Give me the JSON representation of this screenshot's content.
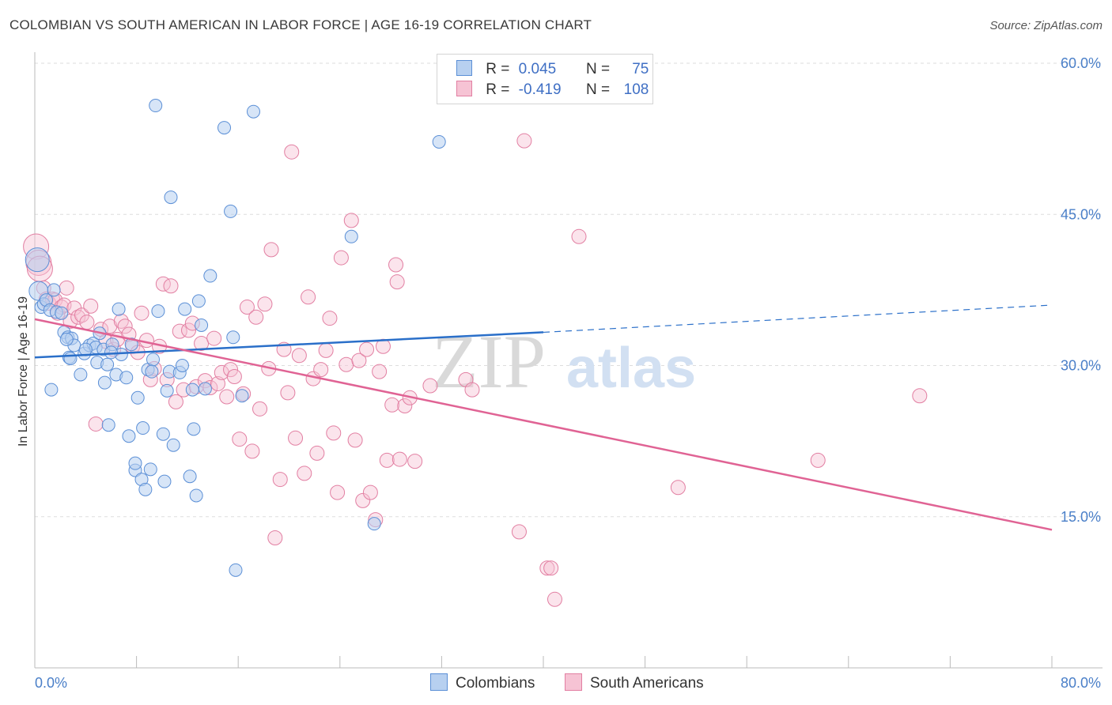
{
  "title": "COLOMBIAN VS SOUTH AMERICAN IN LABOR FORCE | AGE 16-19 CORRELATION CHART",
  "source": "Source: ZipAtlas.com",
  "watermark": {
    "zip": "ZIP",
    "atlas": "atlas"
  },
  "legend_stats": [
    {
      "r_label": "R =",
      "r_value": "0.045",
      "n_label": "N =",
      "n_value": "75"
    },
    {
      "r_label": "R =",
      "r_value": "-0.419",
      "n_label": "N =",
      "n_value": "108"
    }
  ],
  "bottom_legend": [
    "Colombians",
    "South Americans"
  ],
  "colors": {
    "colombians_fill": "#b7d0f0",
    "colombians_stroke": "#5b8fd6",
    "colombians_line": "#2a6fc9",
    "south_fill": "#f6c3d4",
    "south_stroke": "#e27fa2",
    "south_line": "#e06394",
    "tick_text": "#4a7fc8",
    "grid": "#dddddd"
  },
  "chart_data": {
    "type": "scatter",
    "title": "COLOMBIAN VS SOUTH AMERICAN IN LABOR FORCE | AGE 16-19 CORRELATION CHART",
    "xlabel": "",
    "ylabel": "In Labor Force | Age 16-19",
    "xlim": [
      0,
      80
    ],
    "ylim": [
      0,
      60
    ],
    "x_tick_labels": [
      "0.0%",
      "80.0%"
    ],
    "y_ticks": [
      15,
      30,
      45,
      60
    ],
    "y_tick_labels": [
      "15.0%",
      "30.0%",
      "45.0%",
      "60.0%"
    ],
    "grid": "horizontal dashed",
    "legend_position": "top-center",
    "series": [
      {
        "name": "Colombians",
        "trend": {
          "x": [
            0,
            40
          ],
          "y": [
            30.8,
            33.3
          ],
          "extended_to": [
            80,
            36.0
          ]
        },
        "points": [
          [
            0.2,
            40.5
          ],
          [
            0.3,
            37.4
          ],
          [
            0.5,
            35.8
          ],
          [
            0.7,
            36.1
          ],
          [
            0.9,
            36.5
          ],
          [
            1.2,
            35.5
          ],
          [
            1.5,
            37.5
          ],
          [
            1.7,
            35.3
          ],
          [
            1.3,
            27.6
          ],
          [
            2.1,
            35.2
          ],
          [
            2.3,
            33.3
          ],
          [
            2.6,
            32.8
          ],
          [
            2.9,
            32.7
          ],
          [
            3.1,
            32.0
          ],
          [
            2.7,
            30.8
          ],
          [
            2.8,
            30.7
          ],
          [
            3.6,
            29.1
          ],
          [
            3.9,
            31.2
          ],
          [
            4.3,
            32.0
          ],
          [
            4.6,
            32.2
          ],
          [
            4.8,
            31.8
          ],
          [
            4.9,
            30.3
          ],
          [
            5.1,
            33.2
          ],
          [
            5.4,
            31.6
          ],
          [
            5.5,
            28.3
          ],
          [
            5.7,
            30.1
          ],
          [
            5.8,
            24.1
          ],
          [
            6.1,
            32.1
          ],
          [
            6.4,
            29.1
          ],
          [
            6.6,
            35.6
          ],
          [
            6.8,
            31.1
          ],
          [
            7.2,
            28.8
          ],
          [
            7.4,
            23.0
          ],
          [
            7.6,
            32.1
          ],
          [
            7.9,
            19.6
          ],
          [
            7.9,
            20.3
          ],
          [
            8.1,
            26.8
          ],
          [
            8.4,
            18.7
          ],
          [
            8.5,
            23.8
          ],
          [
            8.7,
            17.7
          ],
          [
            9.1,
            19.7
          ],
          [
            8.9,
            29.6
          ],
          [
            9.3,
            30.6
          ],
          [
            9.5,
            55.8
          ],
          [
            9.7,
            35.4
          ],
          [
            10.1,
            23.2
          ],
          [
            10.2,
            18.5
          ],
          [
            10.4,
            27.5
          ],
          [
            10.6,
            29.4
          ],
          [
            10.7,
            46.7
          ],
          [
            10.9,
            22.1
          ],
          [
            11.4,
            29.3
          ],
          [
            11.6,
            30.0
          ],
          [
            11.8,
            35.6
          ],
          [
            12.2,
            19.0
          ],
          [
            12.4,
            27.6
          ],
          [
            12.5,
            23.7
          ],
          [
            12.7,
            17.1
          ],
          [
            12.9,
            36.4
          ],
          [
            13.1,
            34.0
          ],
          [
            13.8,
            38.9
          ],
          [
            14.9,
            53.6
          ],
          [
            15.4,
            45.3
          ],
          [
            15.6,
            32.8
          ],
          [
            15.8,
            9.7
          ],
          [
            16.3,
            27.0
          ],
          [
            17.2,
            55.2
          ],
          [
            24.9,
            42.8
          ],
          [
            26.7,
            14.3
          ],
          [
            31.8,
            52.2
          ],
          [
            13.4,
            27.7
          ],
          [
            6.0,
            31.3
          ],
          [
            4.0,
            31.6
          ],
          [
            9.2,
            29.4
          ],
          [
            2.5,
            32.6
          ]
        ]
      },
      {
        "name": "South Americans",
        "trend": {
          "x": [
            0,
            80
          ],
          "y": [
            34.6,
            13.7
          ]
        },
        "points": [
          [
            0.1,
            41.8
          ],
          [
            0.3,
            40.2
          ],
          [
            0.4,
            39.6
          ],
          [
            0.7,
            37.7
          ],
          [
            0.9,
            36.6
          ],
          [
            1.1,
            36.2
          ],
          [
            1.4,
            36.6
          ],
          [
            1.6,
            36.5
          ],
          [
            1.8,
            35.2
          ],
          [
            2.1,
            35.8
          ],
          [
            2.3,
            36.0
          ],
          [
            2.5,
            37.7
          ],
          [
            2.8,
            34.4
          ],
          [
            3.1,
            35.7
          ],
          [
            3.4,
            34.8
          ],
          [
            3.7,
            35.0
          ],
          [
            4.1,
            34.3
          ],
          [
            4.4,
            35.9
          ],
          [
            4.8,
            24.2
          ],
          [
            5.2,
            33.6
          ],
          [
            5.6,
            32.4
          ],
          [
            5.9,
            33.9
          ],
          [
            6.2,
            31.6
          ],
          [
            6.5,
            32.6
          ],
          [
            6.8,
            34.4
          ],
          [
            7.1,
            33.9
          ],
          [
            7.4,
            33.1
          ],
          [
            7.7,
            31.9
          ],
          [
            8.1,
            31.3
          ],
          [
            8.4,
            35.2
          ],
          [
            8.8,
            32.5
          ],
          [
            9.1,
            28.6
          ],
          [
            9.4,
            29.7
          ],
          [
            9.8,
            31.9
          ],
          [
            10.1,
            38.1
          ],
          [
            10.4,
            28.6
          ],
          [
            10.7,
            37.9
          ],
          [
            11.1,
            26.4
          ],
          [
            11.4,
            33.4
          ],
          [
            11.7,
            27.6
          ],
          [
            12.1,
            33.5
          ],
          [
            12.4,
            34.2
          ],
          [
            12.7,
            27.9
          ],
          [
            13.1,
            32.2
          ],
          [
            13.4,
            28.5
          ],
          [
            13.8,
            27.8
          ],
          [
            14.1,
            32.7
          ],
          [
            14.4,
            28.2
          ],
          [
            14.7,
            29.3
          ],
          [
            15.1,
            26.9
          ],
          [
            15.4,
            29.6
          ],
          [
            15.7,
            28.9
          ],
          [
            16.1,
            22.7
          ],
          [
            16.4,
            27.2
          ],
          [
            16.7,
            35.8
          ],
          [
            17.1,
            21.5
          ],
          [
            17.4,
            34.8
          ],
          [
            17.7,
            25.7
          ],
          [
            18.1,
            36.1
          ],
          [
            18.4,
            29.7
          ],
          [
            18.6,
            41.5
          ],
          [
            18.9,
            12.9
          ],
          [
            19.3,
            18.7
          ],
          [
            19.6,
            31.6
          ],
          [
            19.9,
            27.3
          ],
          [
            20.2,
            51.2
          ],
          [
            20.5,
            22.8
          ],
          [
            20.8,
            31.0
          ],
          [
            21.2,
            19.3
          ],
          [
            21.5,
            36.8
          ],
          [
            21.9,
            28.7
          ],
          [
            22.2,
            21.3
          ],
          [
            22.5,
            29.6
          ],
          [
            22.9,
            31.5
          ],
          [
            23.2,
            34.7
          ],
          [
            23.5,
            23.3
          ],
          [
            23.8,
            17.4
          ],
          [
            24.1,
            40.7
          ],
          [
            24.5,
            30.1
          ],
          [
            24.9,
            44.4
          ],
          [
            25.2,
            22.6
          ],
          [
            25.5,
            30.5
          ],
          [
            25.8,
            16.6
          ],
          [
            26.1,
            31.6
          ],
          [
            26.4,
            17.4
          ],
          [
            26.8,
            14.7
          ],
          [
            27.1,
            29.4
          ],
          [
            27.4,
            31.9
          ],
          [
            27.7,
            20.6
          ],
          [
            28.1,
            26.1
          ],
          [
            28.4,
            40.0
          ],
          [
            28.5,
            38.3
          ],
          [
            28.7,
            20.7
          ],
          [
            29.1,
            26.0
          ],
          [
            29.5,
            26.8
          ],
          [
            29.9,
            20.5
          ],
          [
            33.9,
            28.6
          ],
          [
            34.4,
            27.6
          ],
          [
            38.1,
            13.5
          ],
          [
            38.5,
            52.3
          ],
          [
            40.3,
            9.9
          ],
          [
            40.6,
            9.9
          ],
          [
            40.9,
            6.8
          ],
          [
            42.8,
            42.8
          ],
          [
            50.6,
            17.9
          ],
          [
            61.6,
            20.6
          ],
          [
            69.6,
            27.0
          ],
          [
            31.1,
            28.0
          ]
        ]
      }
    ]
  }
}
